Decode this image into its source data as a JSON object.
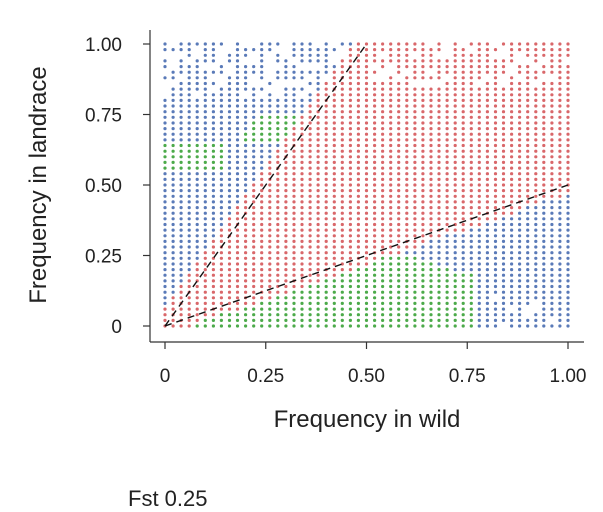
{
  "chart_data": {
    "type": "scatter",
    "title": "",
    "xlabel": "Frequency in wild",
    "ylabel": "Frequency in landrace",
    "xlim": [
      0,
      1
    ],
    "ylim": [
      0,
      1
    ],
    "x_ticks": [
      "0",
      "0.25",
      "0.50",
      "0.75",
      "1.00"
    ],
    "y_ticks": [
      "0",
      "0.25",
      "0.50",
      "0.75",
      "1.00"
    ],
    "grid": false,
    "legend": "none",
    "point_grid": {
      "x_step": 0.02,
      "y_step": 0.02
    },
    "colors": {
      "blue": "#5a7ab8",
      "red": "#d9676a",
      "green": "#4caa4a"
    },
    "reference_lines": [
      {
        "style": "dashed",
        "from": [
          0,
          0
        ],
        "to": [
          0.5,
          1.0
        ]
      },
      {
        "style": "dashed",
        "from": [
          0,
          0
        ],
        "to": [
          1.0,
          0.5
        ]
      }
    ]
  },
  "footer": {
    "text": "Fst 0.25"
  }
}
